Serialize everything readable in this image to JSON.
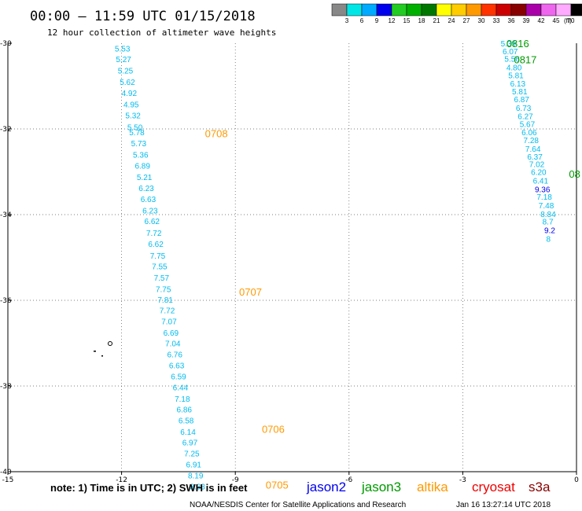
{
  "header": {
    "title": "00:00 – 11:59 UTC 01/15/2018",
    "subtitle": "12 hour collection of altimeter wave heights"
  },
  "colorbar": {
    "labels": [
      "3",
      "6",
      "9",
      "12",
      "15",
      "18",
      "21",
      "24",
      "27",
      "30",
      "33",
      "36",
      "39",
      "42",
      "45",
      "70"
    ],
    "unit": "(ft)",
    "colors": [
      "#888888",
      "#00e6e6",
      "#00aaff",
      "#0000ee",
      "#22cc22",
      "#00b000",
      "#007800",
      "#ffff00",
      "#ffcc00",
      "#ff9900",
      "#ff3300",
      "#cc0000",
      "#880000",
      "#aa00aa",
      "#ee66ee",
      "#ffaaff",
      "#000000"
    ]
  },
  "chart_data": {
    "type": "scatter",
    "xlim": [
      -15,
      0
    ],
    "ylim": [
      -40,
      -30
    ],
    "x_ticks": [
      "-15",
      "-12",
      "-9",
      "-6",
      "-3",
      "0"
    ],
    "y_ticks": [
      "-30",
      "-32",
      "-34",
      "-36",
      "-38",
      "-40"
    ],
    "grid": "dotted",
    "series": [
      {
        "name": "altika",
        "color": "#00bbee",
        "points": [
          {
            "x": -12.18,
            "y": -30.12,
            "v": "5.53"
          },
          {
            "x": -12.15,
            "y": -30.37,
            "v": "5.27"
          },
          {
            "x": -12.1,
            "y": -30.63,
            "v": "5.25"
          },
          {
            "x": -12.05,
            "y": -30.9,
            "v": "5.62"
          },
          {
            "x": -12.0,
            "y": -31.16,
            "v": "4.92"
          },
          {
            "x": -11.95,
            "y": -31.42,
            "v": "4.95"
          },
          {
            "x": -11.9,
            "y": -31.68,
            "v": "5.32"
          },
          {
            "x": -11.85,
            "y": -31.95,
            "v": "5.50"
          },
          {
            "x": -11.8,
            "y": -32.07,
            "v": "5.78"
          },
          {
            "x": -11.75,
            "y": -32.33,
            "v": "5.73"
          },
          {
            "x": -11.7,
            "y": -32.6,
            "v": "5.36"
          },
          {
            "x": -11.65,
            "y": -32.85,
            "v": "6.89"
          },
          {
            "x": -11.6,
            "y": -33.12,
            "v": "5.21"
          },
          {
            "x": -11.55,
            "y": -33.38,
            "v": "6.23"
          },
          {
            "x": -11.5,
            "y": -33.63,
            "v": "6.63"
          },
          {
            "x": -11.45,
            "y": -33.9,
            "v": "6.23"
          },
          {
            "x": -11.4,
            "y": -34.15,
            "v": "6.62"
          },
          {
            "x": -11.35,
            "y": -34.42,
            "v": "7.72"
          },
          {
            "x": -11.3,
            "y": -34.68,
            "v": "6.62"
          },
          {
            "x": -11.25,
            "y": -34.95,
            "v": "7.75"
          },
          {
            "x": -11.2,
            "y": -35.2,
            "v": "7.55"
          },
          {
            "x": -11.15,
            "y": -35.47,
            "v": "7.57"
          },
          {
            "x": -11.1,
            "y": -35.73,
            "v": "7.75"
          },
          {
            "x": -11.05,
            "y": -35.98,
            "v": "7.81"
          },
          {
            "x": -11.0,
            "y": -36.23,
            "v": "7.72"
          },
          {
            "x": -10.95,
            "y": -36.49,
            "v": "7.07"
          },
          {
            "x": -10.9,
            "y": -36.75,
            "v": "6.69"
          },
          {
            "x": -10.85,
            "y": -37.0,
            "v": "7.04"
          },
          {
            "x": -10.8,
            "y": -37.26,
            "v": "6.76"
          },
          {
            "x": -10.75,
            "y": -37.51,
            "v": "6.63"
          },
          {
            "x": -10.7,
            "y": -37.77,
            "v": "6.59"
          },
          {
            "x": -10.65,
            "y": -38.03,
            "v": "6.44"
          },
          {
            "x": -10.6,
            "y": -38.29,
            "v": "7.18"
          },
          {
            "x": -10.55,
            "y": -38.54,
            "v": "6.86"
          },
          {
            "x": -10.5,
            "y": -38.8,
            "v": "6.58"
          },
          {
            "x": -10.45,
            "y": -39.06,
            "v": "6.14"
          },
          {
            "x": -10.4,
            "y": -39.31,
            "v": "6.97"
          },
          {
            "x": -10.35,
            "y": -39.57,
            "v": "7.25"
          },
          {
            "x": -10.3,
            "y": -39.83,
            "v": "6.91"
          },
          {
            "x": -10.25,
            "y": -40.08,
            "v": "8.19"
          },
          {
            "x": -10.2,
            "y": -40.34,
            "v": "8.33"
          }
        ],
        "time_labels": [
          {
            "x": -9.8,
            "y": -32.1,
            "v": "0708"
          },
          {
            "x": -8.9,
            "y": -35.8,
            "v": "0707"
          },
          {
            "x": -8.3,
            "y": -39.0,
            "v": "0706"
          },
          {
            "x": -8.2,
            "y": -40.3,
            "v": "0705"
          }
        ]
      },
      {
        "name": "jason3",
        "color": "#00bbee",
        "points": [
          {
            "x": -2.0,
            "y": -30.0,
            "v": "5.39"
          },
          {
            "x": -1.95,
            "y": -30.18,
            "v": "6.07"
          },
          {
            "x": -1.9,
            "y": -30.36,
            "v": "5.56"
          },
          {
            "x": -1.85,
            "y": -30.56,
            "v": "4.80"
          },
          {
            "x": -1.8,
            "y": -30.74,
            "v": "5.81"
          },
          {
            "x": -1.75,
            "y": -30.94,
            "v": "6.13"
          },
          {
            "x": -1.7,
            "y": -31.12,
            "v": "5.81"
          },
          {
            "x": -1.65,
            "y": -31.3,
            "v": "6.87"
          },
          {
            "x": -1.6,
            "y": -31.5,
            "v": "6.73"
          },
          {
            "x": -1.55,
            "y": -31.7,
            "v": "6.27"
          },
          {
            "x": -1.5,
            "y": -31.88,
            "v": "5.67"
          },
          {
            "x": -1.45,
            "y": -32.07,
            "v": "6.06"
          },
          {
            "x": -1.4,
            "y": -32.26,
            "v": "7.28"
          },
          {
            "x": -1.35,
            "y": -32.46,
            "v": "7.64"
          },
          {
            "x": -1.3,
            "y": -32.64,
            "v": "6.37"
          },
          {
            "x": -1.25,
            "y": -32.82,
            "v": "7.02"
          },
          {
            "x": -1.2,
            "y": -33.0,
            "v": "6.20"
          },
          {
            "x": -1.15,
            "y": -33.2,
            "v": "6.41"
          },
          {
            "x": -1.1,
            "y": -33.4,
            "v": "9.36",
            "color": "#0000ee"
          },
          {
            "x": -1.05,
            "y": -33.58,
            "v": "7.18"
          },
          {
            "x": -1.0,
            "y": -33.78,
            "v": "7.48"
          },
          {
            "x": -0.95,
            "y": -33.98,
            "v": "8.84"
          },
          {
            "x": -0.9,
            "y": -34.16,
            "v": "8.7"
          },
          {
            "x": -0.85,
            "y": -34.36,
            "v": "9.2",
            "color": "#0000ee"
          },
          {
            "x": -0.8,
            "y": -34.56,
            "v": "8"
          }
        ],
        "time_labels": [
          {
            "x": -1.85,
            "y": -30.0,
            "v": "0816"
          },
          {
            "x": -1.65,
            "y": -30.38,
            "v": "0817"
          },
          {
            "x": -0.2,
            "y": -33.05,
            "v": "08"
          }
        ]
      }
    ]
  },
  "note": "note: 1) Time is in UTC; 2) SWH is in feet",
  "satellites": [
    {
      "name": "jason2",
      "color": "#0000ee"
    },
    {
      "name": "jason3",
      "color": "#009900"
    },
    {
      "name": "altika",
      "color": "#ff9900"
    },
    {
      "name": "cryosat",
      "color": "#ee0000"
    },
    {
      "name": "s3a",
      "color": "#880000"
    }
  ],
  "footer": {
    "credit": "NOAA/NESDIS Center for Satellite Applications and Research",
    "timestamp": "Jan 16 13:27:14 UTC 2018"
  }
}
